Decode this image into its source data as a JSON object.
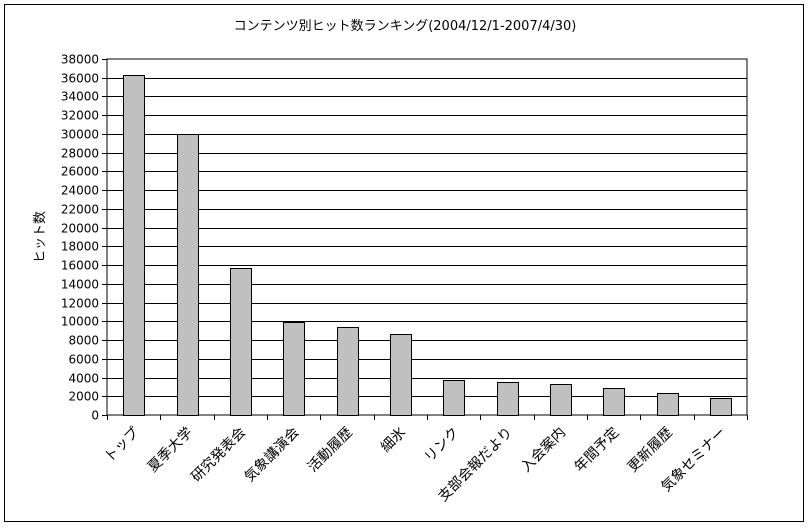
{
  "chart_data": {
    "type": "bar",
    "title": "コンテンツ別ヒット数ランキング(2004/12/1-2007/4/30)",
    "xlabel": "",
    "ylabel": "ヒット数",
    "ylim": [
      0,
      38000
    ],
    "ytick_step": 2000,
    "yticks": [
      "0",
      "2000",
      "4000",
      "6000",
      "8000",
      "10000",
      "12000",
      "14000",
      "16000",
      "18000",
      "20000",
      "22000",
      "24000",
      "26000",
      "28000",
      "30000",
      "32000",
      "34000",
      "36000",
      "38000"
    ],
    "categories": [
      "トップ",
      "夏季大学",
      "研究発表会",
      "気象講演会",
      "活動履歴",
      "細氷",
      "リンク",
      "支部会報だより",
      "入会案内",
      "年間予定",
      "更新履歴",
      "気象セミナー"
    ],
    "values": [
      36300,
      30000,
      15700,
      9900,
      9400,
      8600,
      3700,
      3500,
      3300,
      2900,
      2400,
      1800
    ],
    "grid": true,
    "legend": "none",
    "bar_color": "#c0c0c0"
  }
}
